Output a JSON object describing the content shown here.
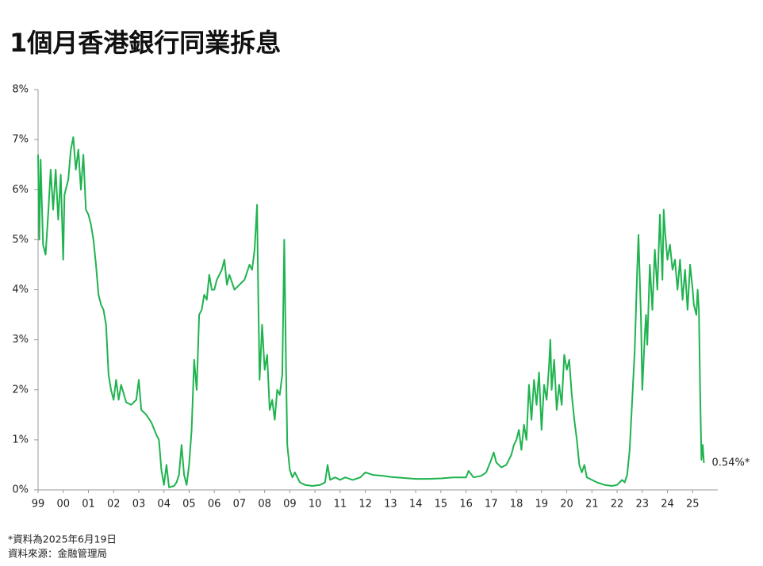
{
  "chart_data": {
    "type": "line",
    "title": "1個月香港銀行同業拆息",
    "footnotes": [
      "*資料為2025年6月19日",
      "資料來源：金融管理局"
    ],
    "end_label": "0.54%*",
    "xlim": [
      1999,
      2026
    ],
    "ylim": [
      0,
      8
    ],
    "xticks": [
      {
        "value": 1999,
        "label": "99"
      },
      {
        "value": 2000,
        "label": "00"
      },
      {
        "value": 2001,
        "label": "01"
      },
      {
        "value": 2002,
        "label": "02"
      },
      {
        "value": 2003,
        "label": "03"
      },
      {
        "value": 2004,
        "label": "04"
      },
      {
        "value": 2005,
        "label": "05"
      },
      {
        "value": 2006,
        "label": "06"
      },
      {
        "value": 2007,
        "label": "07"
      },
      {
        "value": 2008,
        "label": "08"
      },
      {
        "value": 2009,
        "label": "09"
      },
      {
        "value": 2010,
        "label": "10"
      },
      {
        "value": 2011,
        "label": "11"
      },
      {
        "value": 2012,
        "label": "12"
      },
      {
        "value": 2013,
        "label": "13"
      },
      {
        "value": 2014,
        "label": "14"
      },
      {
        "value": 2015,
        "label": "15"
      },
      {
        "value": 2016,
        "label": "16"
      },
      {
        "value": 2017,
        "label": "17"
      },
      {
        "value": 2018,
        "label": "18"
      },
      {
        "value": 2019,
        "label": "19"
      },
      {
        "value": 2020,
        "label": "20"
      },
      {
        "value": 2021,
        "label": "21"
      },
      {
        "value": 2022,
        "label": "22"
      },
      {
        "value": 2023,
        "label": "23"
      },
      {
        "value": 2024,
        "label": "24"
      },
      {
        "value": 2025,
        "label": "25"
      }
    ],
    "yticks": [
      {
        "value": 0,
        "label": "0%"
      },
      {
        "value": 1,
        "label": "1%"
      },
      {
        "value": 2,
        "label": "2%"
      },
      {
        "value": 3,
        "label": "3%"
      },
      {
        "value": 4,
        "label": "4%"
      },
      {
        "value": 5,
        "label": "5%"
      },
      {
        "value": 6,
        "label": "6%"
      },
      {
        "value": 7,
        "label": "7%"
      },
      {
        "value": 8,
        "label": "8%"
      }
    ],
    "grid": false,
    "series": [
      {
        "color": "#1fb34f",
        "x": [
          1999.0,
          1999.05,
          1999.1,
          1999.2,
          1999.3,
          1999.4,
          1999.5,
          1999.6,
          1999.7,
          1999.8,
          1999.9,
          2000.0,
          2000.05,
          2000.2,
          2000.3,
          2000.4,
          2000.5,
          2000.6,
          2000.7,
          2000.8,
          2000.9,
          2001.0,
          2001.1,
          2001.2,
          2001.3,
          2001.4,
          2001.5,
          2001.6,
          2001.7,
          2001.8,
          2001.9,
          2002.0,
          2002.1,
          2002.2,
          2002.3,
          2002.5,
          2002.7,
          2002.9,
          2003.0,
          2003.1,
          2003.3,
          2003.5,
          2003.7,
          2003.8,
          2003.9,
          2004.0,
          2004.1,
          2004.2,
          2004.4,
          2004.5,
          2004.6,
          2004.7,
          2004.8,
          2004.9,
          2005.0,
          2005.1,
          2005.2,
          2005.3,
          2005.4,
          2005.5,
          2005.6,
          2005.7,
          2005.8,
          2005.9,
          2006.0,
          2006.1,
          2006.3,
          2006.4,
          2006.5,
          2006.6,
          2006.8,
          2007.0,
          2007.2,
          2007.4,
          2007.5,
          2007.6,
          2007.7,
          2007.75,
          2007.8,
          2007.9,
          2008.0,
          2008.1,
          2008.2,
          2008.3,
          2008.4,
          2008.5,
          2008.6,
          2008.7,
          2008.78,
          2008.85,
          2008.9,
          2009.0,
          2009.1,
          2009.2,
          2009.4,
          2009.6,
          2009.9,
          2010.2,
          2010.4,
          2010.5,
          2010.6,
          2010.8,
          2011.0,
          2011.2,
          2011.5,
          2011.8,
          2012.0,
          2012.3,
          2012.7,
          2013.0,
          2013.5,
          2014.0,
          2014.5,
          2015.0,
          2015.5,
          2016.0,
          2016.1,
          2016.3,
          2016.6,
          2016.8,
          2017.0,
          2017.1,
          2017.2,
          2017.4,
          2017.6,
          2017.8,
          2017.9,
          2018.0,
          2018.1,
          2018.2,
          2018.3,
          2018.4,
          2018.5,
          2018.6,
          2018.7,
          2018.8,
          2018.9,
          2019.0,
          2019.1,
          2019.2,
          2019.3,
          2019.35,
          2019.4,
          2019.5,
          2019.6,
          2019.7,
          2019.8,
          2019.9,
          2020.0,
          2020.1,
          2020.2,
          2020.3,
          2020.4,
          2020.5,
          2020.6,
          2020.7,
          2020.8,
          2021.0,
          2021.2,
          2021.5,
          2021.8,
          2022.0,
          2022.2,
          2022.3,
          2022.4,
          2022.5,
          2022.6,
          2022.7,
          2022.8,
          2022.85,
          2022.95,
          2023.0,
          2023.1,
          2023.15,
          2023.2,
          2023.3,
          2023.4,
          2023.5,
          2023.6,
          2023.7,
          2023.8,
          2023.85,
          2023.9,
          2024.0,
          2024.1,
          2024.2,
          2024.3,
          2024.4,
          2024.5,
          2024.6,
          2024.7,
          2024.8,
          2024.9,
          2025.0,
          2025.05,
          2025.15,
          2025.2,
          2025.25,
          2025.3,
          2025.35,
          2025.4,
          2025.45
        ],
        "values": [
          6.7,
          5.0,
          6.6,
          4.9,
          4.7,
          5.5,
          6.4,
          5.6,
          6.4,
          5.4,
          6.3,
          4.6,
          5.9,
          6.2,
          6.8,
          7.05,
          6.4,
          6.8,
          6.0,
          6.7,
          5.6,
          5.5,
          5.3,
          5.0,
          4.5,
          3.9,
          3.7,
          3.6,
          3.3,
          2.3,
          2.0,
          1.8,
          2.2,
          1.8,
          2.1,
          1.75,
          1.7,
          1.8,
          2.2,
          1.6,
          1.5,
          1.35,
          1.1,
          1.0,
          0.4,
          0.1,
          0.5,
          0.05,
          0.08,
          0.15,
          0.3,
          0.9,
          0.3,
          0.1,
          0.5,
          1.2,
          2.6,
          2.0,
          3.5,
          3.6,
          3.9,
          3.8,
          4.3,
          4.0,
          4.0,
          4.2,
          4.4,
          4.6,
          4.1,
          4.3,
          4.0,
          4.1,
          4.2,
          4.5,
          4.4,
          4.8,
          5.7,
          3.8,
          2.2,
          3.3,
          2.4,
          2.7,
          1.6,
          1.8,
          1.4,
          2.0,
          1.9,
          2.3,
          5.0,
          2.5,
          0.9,
          0.4,
          0.25,
          0.35,
          0.15,
          0.1,
          0.08,
          0.1,
          0.15,
          0.5,
          0.2,
          0.25,
          0.2,
          0.25,
          0.2,
          0.25,
          0.35,
          0.3,
          0.28,
          0.26,
          0.24,
          0.22,
          0.22,
          0.23,
          0.25,
          0.25,
          0.38,
          0.25,
          0.28,
          0.35,
          0.6,
          0.75,
          0.55,
          0.45,
          0.5,
          0.7,
          0.9,
          1.0,
          1.2,
          0.8,
          1.3,
          1.0,
          2.1,
          1.4,
          2.2,
          1.7,
          2.35,
          1.2,
          2.1,
          1.8,
          2.5,
          3.0,
          2.0,
          2.6,
          1.6,
          2.1,
          1.7,
          2.7,
          2.4,
          2.6,
          1.9,
          1.4,
          1.0,
          0.5,
          0.35,
          0.5,
          0.25,
          0.2,
          0.15,
          0.1,
          0.08,
          0.1,
          0.2,
          0.15,
          0.3,
          0.8,
          1.8,
          2.8,
          4.4,
          5.1,
          3.4,
          2.0,
          3.1,
          3.5,
          2.9,
          4.5,
          3.6,
          4.8,
          4.0,
          5.5,
          4.2,
          5.6,
          5.2,
          4.6,
          4.9,
          4.4,
          4.6,
          4.0,
          4.6,
          3.8,
          4.4,
          3.6,
          4.5,
          4.0,
          3.7,
          3.5,
          4.0,
          3.6,
          1.9,
          0.6,
          0.9,
          0.54
        ]
      }
    ]
  }
}
